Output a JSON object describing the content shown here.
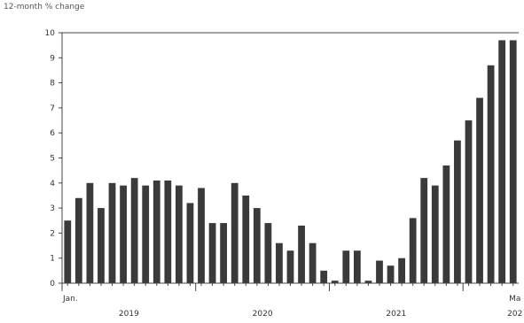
{
  "chart_data": {
    "type": "bar",
    "ylabel": "12-month % change",
    "ylim": [
      0,
      10
    ],
    "yticks": [
      0,
      1,
      2,
      3,
      4,
      5,
      6,
      7,
      8,
      9,
      10
    ],
    "first_month_label": "Jan.",
    "last_month_label": "Ma",
    "year_labels": [
      "2019",
      "2020",
      "2021",
      "202"
    ],
    "bar_color": "#3a3a3a",
    "grid": false,
    "values": [
      2.5,
      3.4,
      4.0,
      3.0,
      4.0,
      3.9,
      4.2,
      3.9,
      4.1,
      4.1,
      3.9,
      3.2,
      3.8,
      2.4,
      2.4,
      4.0,
      3.5,
      3.0,
      2.4,
      1.6,
      1.3,
      2.3,
      1.6,
      0.5,
      0.1,
      1.3,
      1.3,
      0.1,
      0.9,
      0.7,
      1.0,
      2.6,
      4.2,
      3.9,
      4.7,
      5.7,
      6.5,
      7.4,
      8.7,
      9.7,
      9.7
    ]
  }
}
